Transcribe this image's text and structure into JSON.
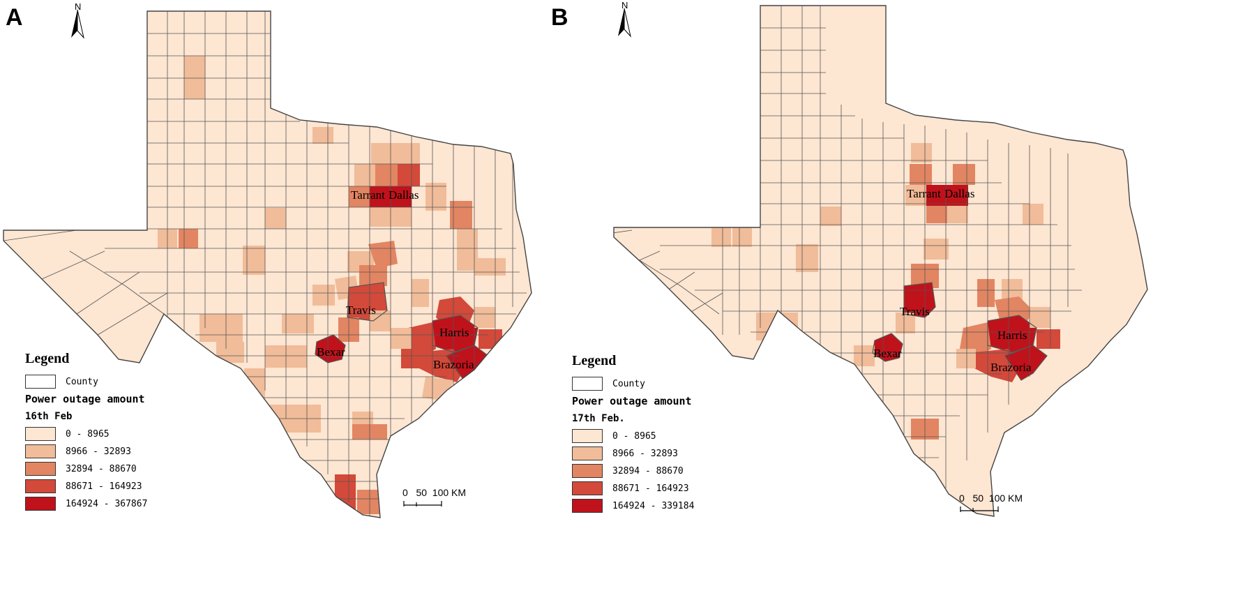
{
  "panels": [
    {
      "letter": "A",
      "north_label": "N",
      "legend": {
        "title": "Legend",
        "county_label": "County",
        "heading": "Power outage amount",
        "date": "16th Feb",
        "classes": [
          {
            "label": "0 - 8965",
            "color": "#fde6d2"
          },
          {
            "label": "8966 - 32893",
            "color": "#f1bc99"
          },
          {
            "label": "32894 - 88670",
            "color": "#e28562"
          },
          {
            "label": "88671 - 164923",
            "color": "#d3493a"
          },
          {
            "label": "164924 - 367867",
            "color": "#c0121b"
          }
        ]
      },
      "scale": {
        "ticks": "0   50  100 KM"
      },
      "counties": [
        "Tarrant",
        "Dallas",
        "Travis",
        "Harris",
        "Bexar",
        "Brazoria"
      ]
    },
    {
      "letter": "B",
      "north_label": "N",
      "legend": {
        "title": "Legend",
        "county_label": "County",
        "heading": "Power outage amount",
        "date": "17th Feb.",
        "classes": [
          {
            "label": "0 - 8965",
            "color": "#fde6d2"
          },
          {
            "label": "8966 - 32893",
            "color": "#f1bc99"
          },
          {
            "label": "32894 - 88670",
            "color": "#e28562"
          },
          {
            "label": "88671 - 164923",
            "color": "#d3493a"
          },
          {
            "label": "164924 - 339184",
            "color": "#c0121b"
          }
        ]
      },
      "scale": {
        "ticks": "0   50  100 KM"
      },
      "counties": [
        "Tarrant",
        "Dallas",
        "Travis",
        "Harris",
        "Bexar",
        "Brazoria"
      ]
    }
  ]
}
